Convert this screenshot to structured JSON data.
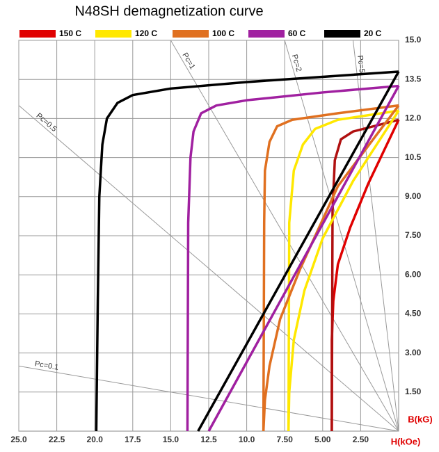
{
  "chart_data": {
    "type": "line",
    "title": "N48SH demagnetization curve",
    "x_label": "H(kOe)",
    "y_label": "B(kG)",
    "xlim": [
      25,
      0
    ],
    "ylim": [
      0,
      15
    ],
    "xticks": [
      {
        "value": 25,
        "label": "25.0"
      },
      22.5,
      {
        "value": 20,
        "label": "20.0"
      },
      17.5,
      {
        "value": 15,
        "label": "15.0"
      },
      12.5,
      {
        "value": 10,
        "label": "10.0"
      },
      {
        "value": 7.5,
        "label": "7.50"
      },
      {
        "value": 5,
        "label": "5.00"
      },
      {
        "value": 2.5,
        "label": "2.50"
      }
    ],
    "yticks": [
      {
        "value": 15,
        "label": "15.0"
      },
      13.5,
      {
        "value": 12,
        "label": "12.0"
      },
      10.5,
      {
        "value": 9,
        "label": "9.00"
      },
      {
        "value": 7.5,
        "label": "7.50"
      },
      {
        "value": 6,
        "label": "6.00"
      },
      {
        "value": 4.5,
        "label": "4.50"
      },
      {
        "value": 3,
        "label": "3.00"
      },
      {
        "value": 1.5,
        "label": "1.50"
      }
    ],
    "grid": true,
    "series": [
      {
        "name": "150 C",
        "color": "#e00000",
        "intrinsic_color": "#b01010",
        "x": [
          0,
          3,
          3.8,
          4.2,
          4.35,
          4.4
        ],
        "values": [
          11.95,
          11.5,
          11.2,
          10.4,
          8.5,
          0
        ],
        "normal_x": [
          0,
          2,
          3.2,
          4,
          4.3,
          4.4,
          4.4
        ],
        "normal_values": [
          11.95,
          9.5,
          7.8,
          6.4,
          5,
          3.5,
          0
        ]
      },
      {
        "name": "120 C",
        "color": "#ffe800",
        "intrinsic_color": "#ffe800",
        "x": [
          0,
          4,
          5.5,
          6.3,
          6.9,
          7.2,
          7.25
        ],
        "values": [
          12.3,
          11.95,
          11.6,
          11,
          10,
          8,
          0
        ],
        "normal_x": [
          0,
          3,
          5,
          6.2,
          6.9,
          7.2,
          7.25
        ],
        "normal_values": [
          12.3,
          9.6,
          7.4,
          5.4,
          3.5,
          1.5,
          0
        ]
      },
      {
        "name": "100 C",
        "color": "#e07020",
        "intrinsic_color": "#e07020",
        "x": [
          0,
          4,
          7,
          8,
          8.5,
          8.8,
          8.85,
          8.9
        ],
        "values": [
          12.5,
          12.2,
          11.95,
          11.7,
          11.1,
          10,
          8,
          0
        ],
        "normal_x": [
          0,
          4,
          6.5,
          7.8,
          8.5,
          8.8,
          8.9
        ],
        "normal_values": [
          12.5,
          9.4,
          6.2,
          4.3,
          2.5,
          1.2,
          0
        ]
      },
      {
        "name": "60 C",
        "color": "#a020a0",
        "intrinsic_color": "#a020a0",
        "x": [
          0,
          5,
          10,
          12,
          13,
          13.5,
          13.7,
          13.85,
          13.9
        ],
        "values": [
          13.25,
          13,
          12.7,
          12.5,
          12.2,
          11.5,
          10.5,
          8,
          0
        ],
        "normal_x": [
          0,
          12.5
        ],
        "normal_values": [
          13.25,
          0
        ]
      },
      {
        "name": "20 C",
        "color": "#000000",
        "intrinsic_color": "#000000",
        "x": [
          0,
          5,
          10,
          15,
          17.5,
          18.5,
          19.2,
          19.5,
          19.7,
          19.8,
          19.9
        ],
        "values": [
          13.8,
          13.6,
          13.4,
          13.15,
          12.9,
          12.6,
          12,
          11,
          9,
          5,
          0
        ],
        "normal_x": [
          0,
          13.2
        ],
        "normal_values": [
          13.8,
          0
        ]
      }
    ],
    "load_lines": [
      {
        "label": "Pc=0.1",
        "value": 0.1
      },
      {
        "label": "Pc=0.5",
        "value": 0.5
      },
      {
        "label": "Pc=1",
        "value": 1
      },
      {
        "label": "Pc=2",
        "value": 2
      },
      {
        "label": "Pc=5",
        "value": 5
      }
    ]
  }
}
